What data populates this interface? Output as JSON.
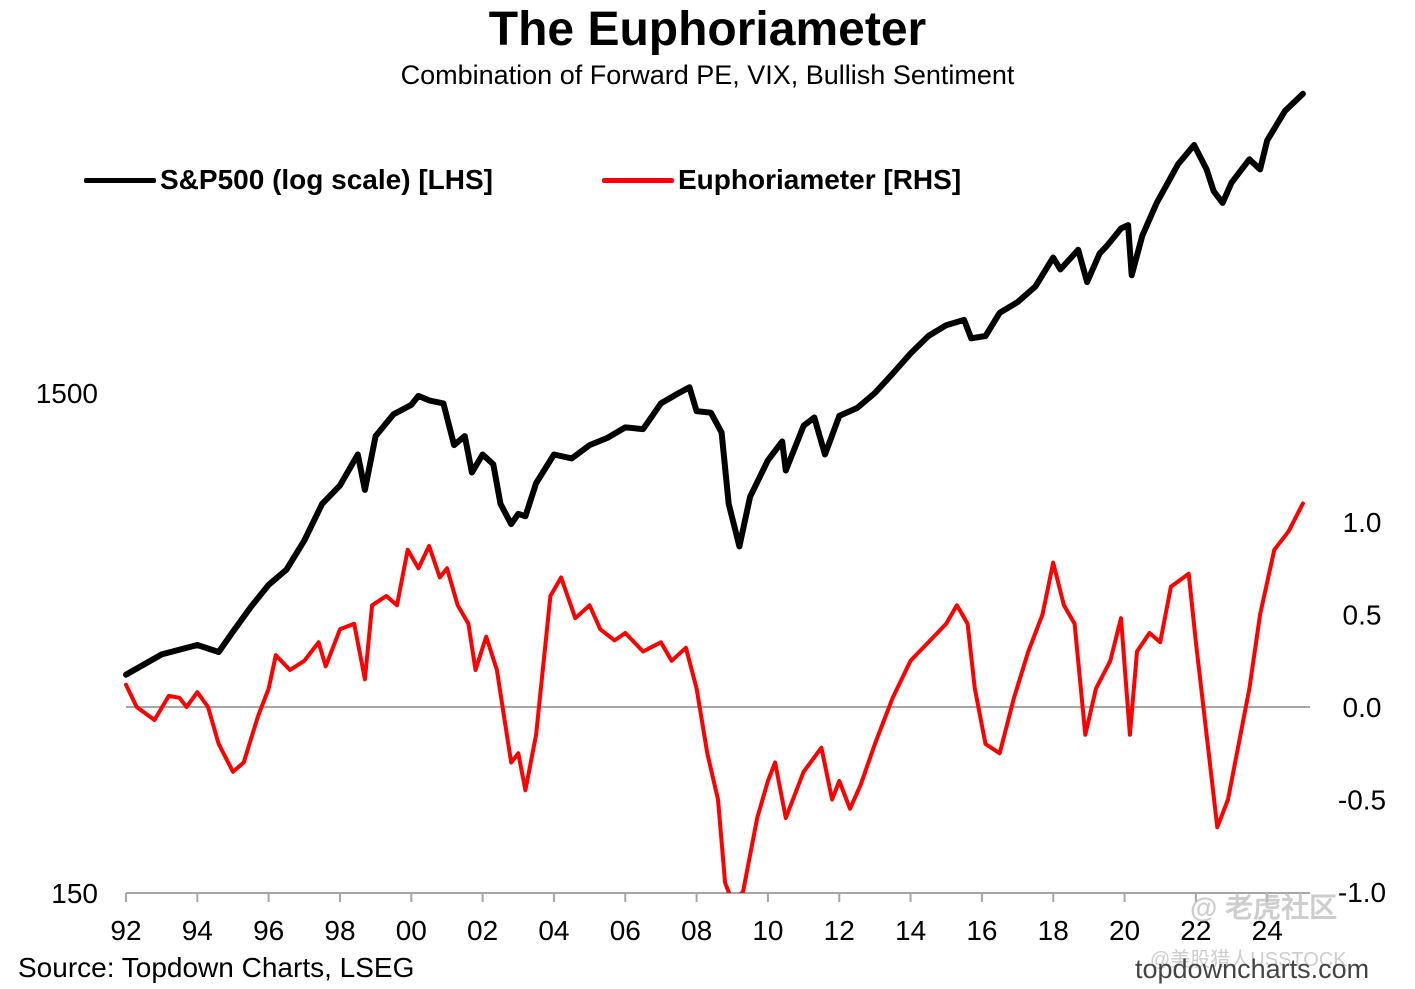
{
  "header": {
    "title": "The Euphoriameter",
    "subtitle": "Combination of Forward PE, VIX, Bullish Sentiment"
  },
  "legend": {
    "sp500_label": "S&P500 (log scale) [LHS]",
    "euph_label": "Euphoriameter [RHS]"
  },
  "footer": {
    "source": "Source: Topdown Charts, LSEG",
    "site": "topdowncharts.com"
  },
  "watermark": {
    "brand": "@ 老虎社区",
    "handle": "@美股猎人USSTOCK"
  },
  "colors": {
    "sp500": "#000000",
    "euphoriameter": "#ff0000",
    "zero_line": "#a6a6a6"
  },
  "chart_data": {
    "type": "line",
    "x_axis": {
      "range": [
        1992,
        2025.2
      ],
      "ticks": [
        1992,
        1994,
        1996,
        1998,
        2000,
        2002,
        2004,
        2006,
        2008,
        2010,
        2012,
        2014,
        2016,
        2018,
        2020,
        2022,
        2024
      ],
      "tick_labels": [
        "92",
        "94",
        "96",
        "98",
        "00",
        "02",
        "04",
        "06",
        "08",
        "10",
        "12",
        "14",
        "16",
        "18",
        "20",
        "22",
        "24"
      ]
    },
    "y_left": {
      "scale": "log",
      "range": [
        150,
        6000
      ],
      "ticks": [
        150,
        1500
      ],
      "tick_labels": [
        "150",
        "1500"
      ]
    },
    "y_right": {
      "scale": "linear",
      "range": [
        -1.0,
        1.3
      ],
      "ticks": [
        1.0,
        0.5,
        0.0,
        -0.5,
        -1.0
      ],
      "tick_labels": [
        "1.0",
        "0.5",
        "0.0",
        "-0.5",
        "-1.0"
      ]
    },
    "zero_line": 0.0,
    "grid": false,
    "legend_position": "top-left",
    "series": [
      {
        "name": "S&P500 (log scale) [LHS]",
        "axis": "left",
        "points": [
          [
            1992.0,
            410
          ],
          [
            1993.0,
            450
          ],
          [
            1994.0,
            470
          ],
          [
            1994.6,
            455
          ],
          [
            1995.0,
            500
          ],
          [
            1995.5,
            560
          ],
          [
            1996.0,
            620
          ],
          [
            1996.5,
            665
          ],
          [
            1997.0,
            760
          ],
          [
            1997.5,
            900
          ],
          [
            1998.0,
            980
          ],
          [
            1998.5,
            1130
          ],
          [
            1998.7,
            960
          ],
          [
            1999.0,
            1230
          ],
          [
            1999.5,
            1360
          ],
          [
            2000.0,
            1420
          ],
          [
            2000.2,
            1480
          ],
          [
            2000.5,
            1450
          ],
          [
            2000.9,
            1430
          ],
          [
            2001.2,
            1180
          ],
          [
            2001.5,
            1230
          ],
          [
            2001.7,
            1040
          ],
          [
            2002.0,
            1130
          ],
          [
            2002.3,
            1080
          ],
          [
            2002.5,
            900
          ],
          [
            2002.8,
            820
          ],
          [
            2003.0,
            860
          ],
          [
            2003.2,
            850
          ],
          [
            2003.5,
            990
          ],
          [
            2004.0,
            1130
          ],
          [
            2004.5,
            1110
          ],
          [
            2005.0,
            1180
          ],
          [
            2005.5,
            1220
          ],
          [
            2006.0,
            1280
          ],
          [
            2006.5,
            1270
          ],
          [
            2007.0,
            1430
          ],
          [
            2007.5,
            1500
          ],
          [
            2007.8,
            1540
          ],
          [
            2008.0,
            1380
          ],
          [
            2008.4,
            1370
          ],
          [
            2008.7,
            1250
          ],
          [
            2008.9,
            900
          ],
          [
            2009.2,
            740
          ],
          [
            2009.5,
            930
          ],
          [
            2010.0,
            1100
          ],
          [
            2010.4,
            1200
          ],
          [
            2010.5,
            1050
          ],
          [
            2011.0,
            1290
          ],
          [
            2011.3,
            1340
          ],
          [
            2011.6,
            1130
          ],
          [
            2012.0,
            1350
          ],
          [
            2012.5,
            1400
          ],
          [
            2013.0,
            1500
          ],
          [
            2013.5,
            1640
          ],
          [
            2014.0,
            1800
          ],
          [
            2014.5,
            1950
          ],
          [
            2015.0,
            2050
          ],
          [
            2015.5,
            2100
          ],
          [
            2015.7,
            1930
          ],
          [
            2016.1,
            1950
          ],
          [
            2016.5,
            2170
          ],
          [
            2017.0,
            2280
          ],
          [
            2017.5,
            2450
          ],
          [
            2018.0,
            2800
          ],
          [
            2018.2,
            2650
          ],
          [
            2018.7,
            2900
          ],
          [
            2018.95,
            2500
          ],
          [
            2019.3,
            2850
          ],
          [
            2019.5,
            2950
          ],
          [
            2019.9,
            3200
          ],
          [
            2020.1,
            3250
          ],
          [
            2020.2,
            2580
          ],
          [
            2020.5,
            3100
          ],
          [
            2020.9,
            3600
          ],
          [
            2021.5,
            4300
          ],
          [
            2021.95,
            4700
          ],
          [
            2022.3,
            4200
          ],
          [
            2022.5,
            3800
          ],
          [
            2022.75,
            3600
          ],
          [
            2023.0,
            3950
          ],
          [
            2023.5,
            4400
          ],
          [
            2023.8,
            4200
          ],
          [
            2024.0,
            4800
          ],
          [
            2024.5,
            5500
          ],
          [
            2025.0,
            5950
          ]
        ]
      },
      {
        "name": "Euphoriameter [RHS]",
        "axis": "right",
        "points": [
          [
            1992.0,
            0.12
          ],
          [
            1992.3,
            0.0
          ],
          [
            1992.8,
            -0.07
          ],
          [
            1993.2,
            0.06
          ],
          [
            1993.5,
            0.05
          ],
          [
            1993.7,
            0.0
          ],
          [
            1994.0,
            0.08
          ],
          [
            1994.3,
            0.0
          ],
          [
            1994.6,
            -0.2
          ],
          [
            1995.0,
            -0.35
          ],
          [
            1995.3,
            -0.3
          ],
          [
            1995.7,
            -0.05
          ],
          [
            1996.0,
            0.1
          ],
          [
            1996.2,
            0.28
          ],
          [
            1996.6,
            0.2
          ],
          [
            1997.0,
            0.25
          ],
          [
            1997.4,
            0.35
          ],
          [
            1997.6,
            0.22
          ],
          [
            1998.0,
            0.42
          ],
          [
            1998.4,
            0.45
          ],
          [
            1998.7,
            0.15
          ],
          [
            1998.9,
            0.55
          ],
          [
            1999.3,
            0.6
          ],
          [
            1999.6,
            0.55
          ],
          [
            1999.9,
            0.85
          ],
          [
            2000.2,
            0.75
          ],
          [
            2000.5,
            0.87
          ],
          [
            2000.8,
            0.7
          ],
          [
            2001.0,
            0.75
          ],
          [
            2001.3,
            0.55
          ],
          [
            2001.6,
            0.45
          ],
          [
            2001.8,
            0.2
          ],
          [
            2002.1,
            0.38
          ],
          [
            2002.4,
            0.2
          ],
          [
            2002.6,
            -0.05
          ],
          [
            2002.8,
            -0.3
          ],
          [
            2003.0,
            -0.25
          ],
          [
            2003.2,
            -0.45
          ],
          [
            2003.5,
            -0.15
          ],
          [
            2003.9,
            0.6
          ],
          [
            2004.2,
            0.7
          ],
          [
            2004.6,
            0.48
          ],
          [
            2005.0,
            0.55
          ],
          [
            2005.3,
            0.42
          ],
          [
            2005.7,
            0.36
          ],
          [
            2006.0,
            0.4
          ],
          [
            2006.5,
            0.3
          ],
          [
            2007.0,
            0.35
          ],
          [
            2007.3,
            0.25
          ],
          [
            2007.7,
            0.32
          ],
          [
            2008.0,
            0.1
          ],
          [
            2008.3,
            -0.25
          ],
          [
            2008.6,
            -0.5
          ],
          [
            2008.8,
            -0.95
          ],
          [
            2009.0,
            -1.05
          ],
          [
            2009.3,
            -1.0
          ],
          [
            2009.7,
            -0.6
          ],
          [
            2010.0,
            -0.4
          ],
          [
            2010.2,
            -0.3
          ],
          [
            2010.5,
            -0.6
          ],
          [
            2011.0,
            -0.35
          ],
          [
            2011.5,
            -0.22
          ],
          [
            2011.8,
            -0.5
          ],
          [
            2012.0,
            -0.4
          ],
          [
            2012.3,
            -0.55
          ],
          [
            2012.6,
            -0.42
          ],
          [
            2013.0,
            -0.2
          ],
          [
            2013.5,
            0.05
          ],
          [
            2014.0,
            0.25
          ],
          [
            2014.5,
            0.35
          ],
          [
            2015.0,
            0.45
          ],
          [
            2015.3,
            0.55
          ],
          [
            2015.6,
            0.45
          ],
          [
            2015.8,
            0.1
          ],
          [
            2016.1,
            -0.2
          ],
          [
            2016.5,
            -0.25
          ],
          [
            2016.9,
            0.05
          ],
          [
            2017.3,
            0.3
          ],
          [
            2017.7,
            0.5
          ],
          [
            2018.0,
            0.78
          ],
          [
            2018.3,
            0.55
          ],
          [
            2018.6,
            0.45
          ],
          [
            2018.9,
            -0.15
          ],
          [
            2019.2,
            0.1
          ],
          [
            2019.6,
            0.25
          ],
          [
            2019.9,
            0.48
          ],
          [
            2020.15,
            -0.15
          ],
          [
            2020.35,
            0.3
          ],
          [
            2020.7,
            0.4
          ],
          [
            2021.0,
            0.35
          ],
          [
            2021.3,
            0.65
          ],
          [
            2021.8,
            0.72
          ],
          [
            2022.0,
            0.35
          ],
          [
            2022.3,
            -0.15
          ],
          [
            2022.6,
            -0.65
          ],
          [
            2022.9,
            -0.5
          ],
          [
            2023.2,
            -0.2
          ],
          [
            2023.5,
            0.1
          ],
          [
            2023.8,
            0.5
          ],
          [
            2024.2,
            0.85
          ],
          [
            2024.6,
            0.95
          ],
          [
            2025.0,
            1.1
          ]
        ]
      }
    ]
  }
}
